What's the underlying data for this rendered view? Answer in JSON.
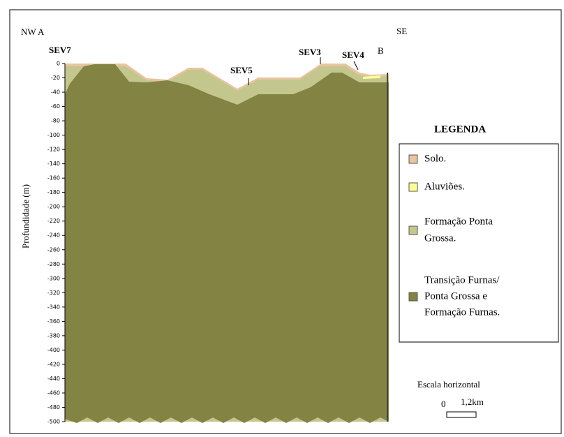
{
  "header": {
    "left": "NW A",
    "right_b": "B",
    "right": "SE"
  },
  "stations": [
    "SEV7",
    "SEV5",
    "SEV3",
    "SEV4"
  ],
  "axis": {
    "label": "Profundidade (m)",
    "ylim": [
      0,
      -500
    ],
    "yticks": [
      0,
      -20,
      -40,
      -60,
      -80,
      -100,
      -120,
      -140,
      -160,
      -180,
      -200,
      -220,
      -240,
      -260,
      -280,
      -300,
      -320,
      -340,
      -360,
      -380,
      -400,
      -420,
      -440,
      -460,
      -480,
      -500
    ]
  },
  "legend": {
    "title": "LEGENDA",
    "items": [
      {
        "lines": [
          "Solo."
        ],
        "color": "#e8c4a0"
      },
      {
        "lines": [
          "Aluviões."
        ],
        "color": "#ffff99"
      },
      {
        "lines": [
          "Formação Ponta",
          "Grossa."
        ],
        "color": "#c3c78d"
      },
      {
        "lines": [
          "Transição Furnas/",
          "Ponta Grossa e",
          "Formação Furnas."
        ],
        "color": "#838343"
      }
    ]
  },
  "scale": {
    "title": "Escala horizontal",
    "zero": "0",
    "length": "1,2km"
  }
}
